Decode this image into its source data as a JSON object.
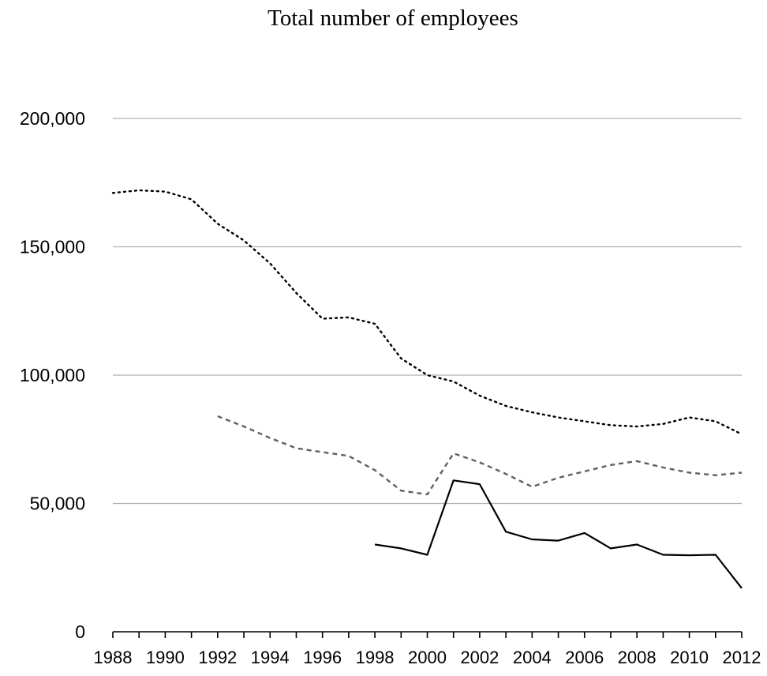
{
  "chart_data": {
    "type": "line",
    "title": "Total number of employees",
    "xlabel": "",
    "ylabel": "",
    "x": [
      1988,
      1989,
      1990,
      1991,
      1992,
      1993,
      1994,
      1995,
      1996,
      1997,
      1998,
      1999,
      2000,
      2001,
      2002,
      2003,
      2004,
      2005,
      2006,
      2007,
      2008,
      2009,
      2010,
      2011,
      2012
    ],
    "xlim": [
      1988,
      2012
    ],
    "xticks": [
      1988,
      1990,
      1992,
      1994,
      1996,
      1998,
      2000,
      2002,
      2004,
      2006,
      2008,
      2010,
      2012
    ],
    "xtick_labels": [
      "1988",
      "1990",
      "1992",
      "1994",
      "1996",
      "1998",
      "2000",
      "2002",
      "2004",
      "2006",
      "2008",
      "2010",
      "2012"
    ],
    "ylim": [
      0,
      200000
    ],
    "yticks": [
      0,
      50000,
      100000,
      150000,
      200000
    ],
    "ytick_labels": [
      "0",
      "50,000",
      "100,000",
      "150,000",
      "200,000"
    ],
    "grid": true,
    "legend": "none",
    "series": [
      {
        "style": "dotted",
        "color": "#000000",
        "values": [
          171000,
          172000,
          171500,
          168500,
          159000,
          152500,
          143500,
          132000,
          122000,
          122500,
          120000,
          106500,
          100000,
          97500,
          92000,
          88000,
          85500,
          83500,
          82000,
          80500,
          80000,
          81000,
          83500,
          82000,
          77000
        ]
      },
      {
        "style": "dashed",
        "color": "#606060",
        "values": [
          null,
          null,
          null,
          null,
          84000,
          80000,
          75500,
          71500,
          70000,
          68500,
          63000,
          55000,
          53500,
          69500,
          66000,
          61500,
          56500,
          60000,
          62500,
          65000,
          66500,
          64000,
          62000,
          61000,
          62000
        ]
      },
      {
        "style": "solid",
        "color": "#000000",
        "values": [
          null,
          null,
          null,
          null,
          null,
          null,
          null,
          null,
          null,
          null,
          34000,
          32500,
          30000,
          59000,
          57500,
          39000,
          36000,
          35500,
          38500,
          32500,
          34000,
          30000,
          29800,
          30000,
          17000
        ]
      }
    ]
  }
}
